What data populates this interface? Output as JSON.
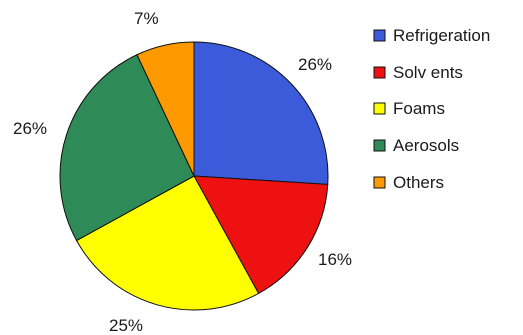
{
  "chart_data": {
    "type": "pie",
    "categories": [
      "Refrigeration",
      "Solv ents",
      "Foams",
      "Aerosols",
      "Others"
    ],
    "values": [
      26,
      16,
      25,
      26,
      7
    ],
    "data_labels": [
      "26%",
      "16%",
      "25%",
      "26%",
      "7%"
    ],
    "colors": [
      "#3b5bdb",
      "#ee1111",
      "#ffff00",
      "#2e8b57",
      "#ff9900"
    ],
    "start_direction": "top",
    "direction": "clockwise",
    "legend_position": "right"
  }
}
